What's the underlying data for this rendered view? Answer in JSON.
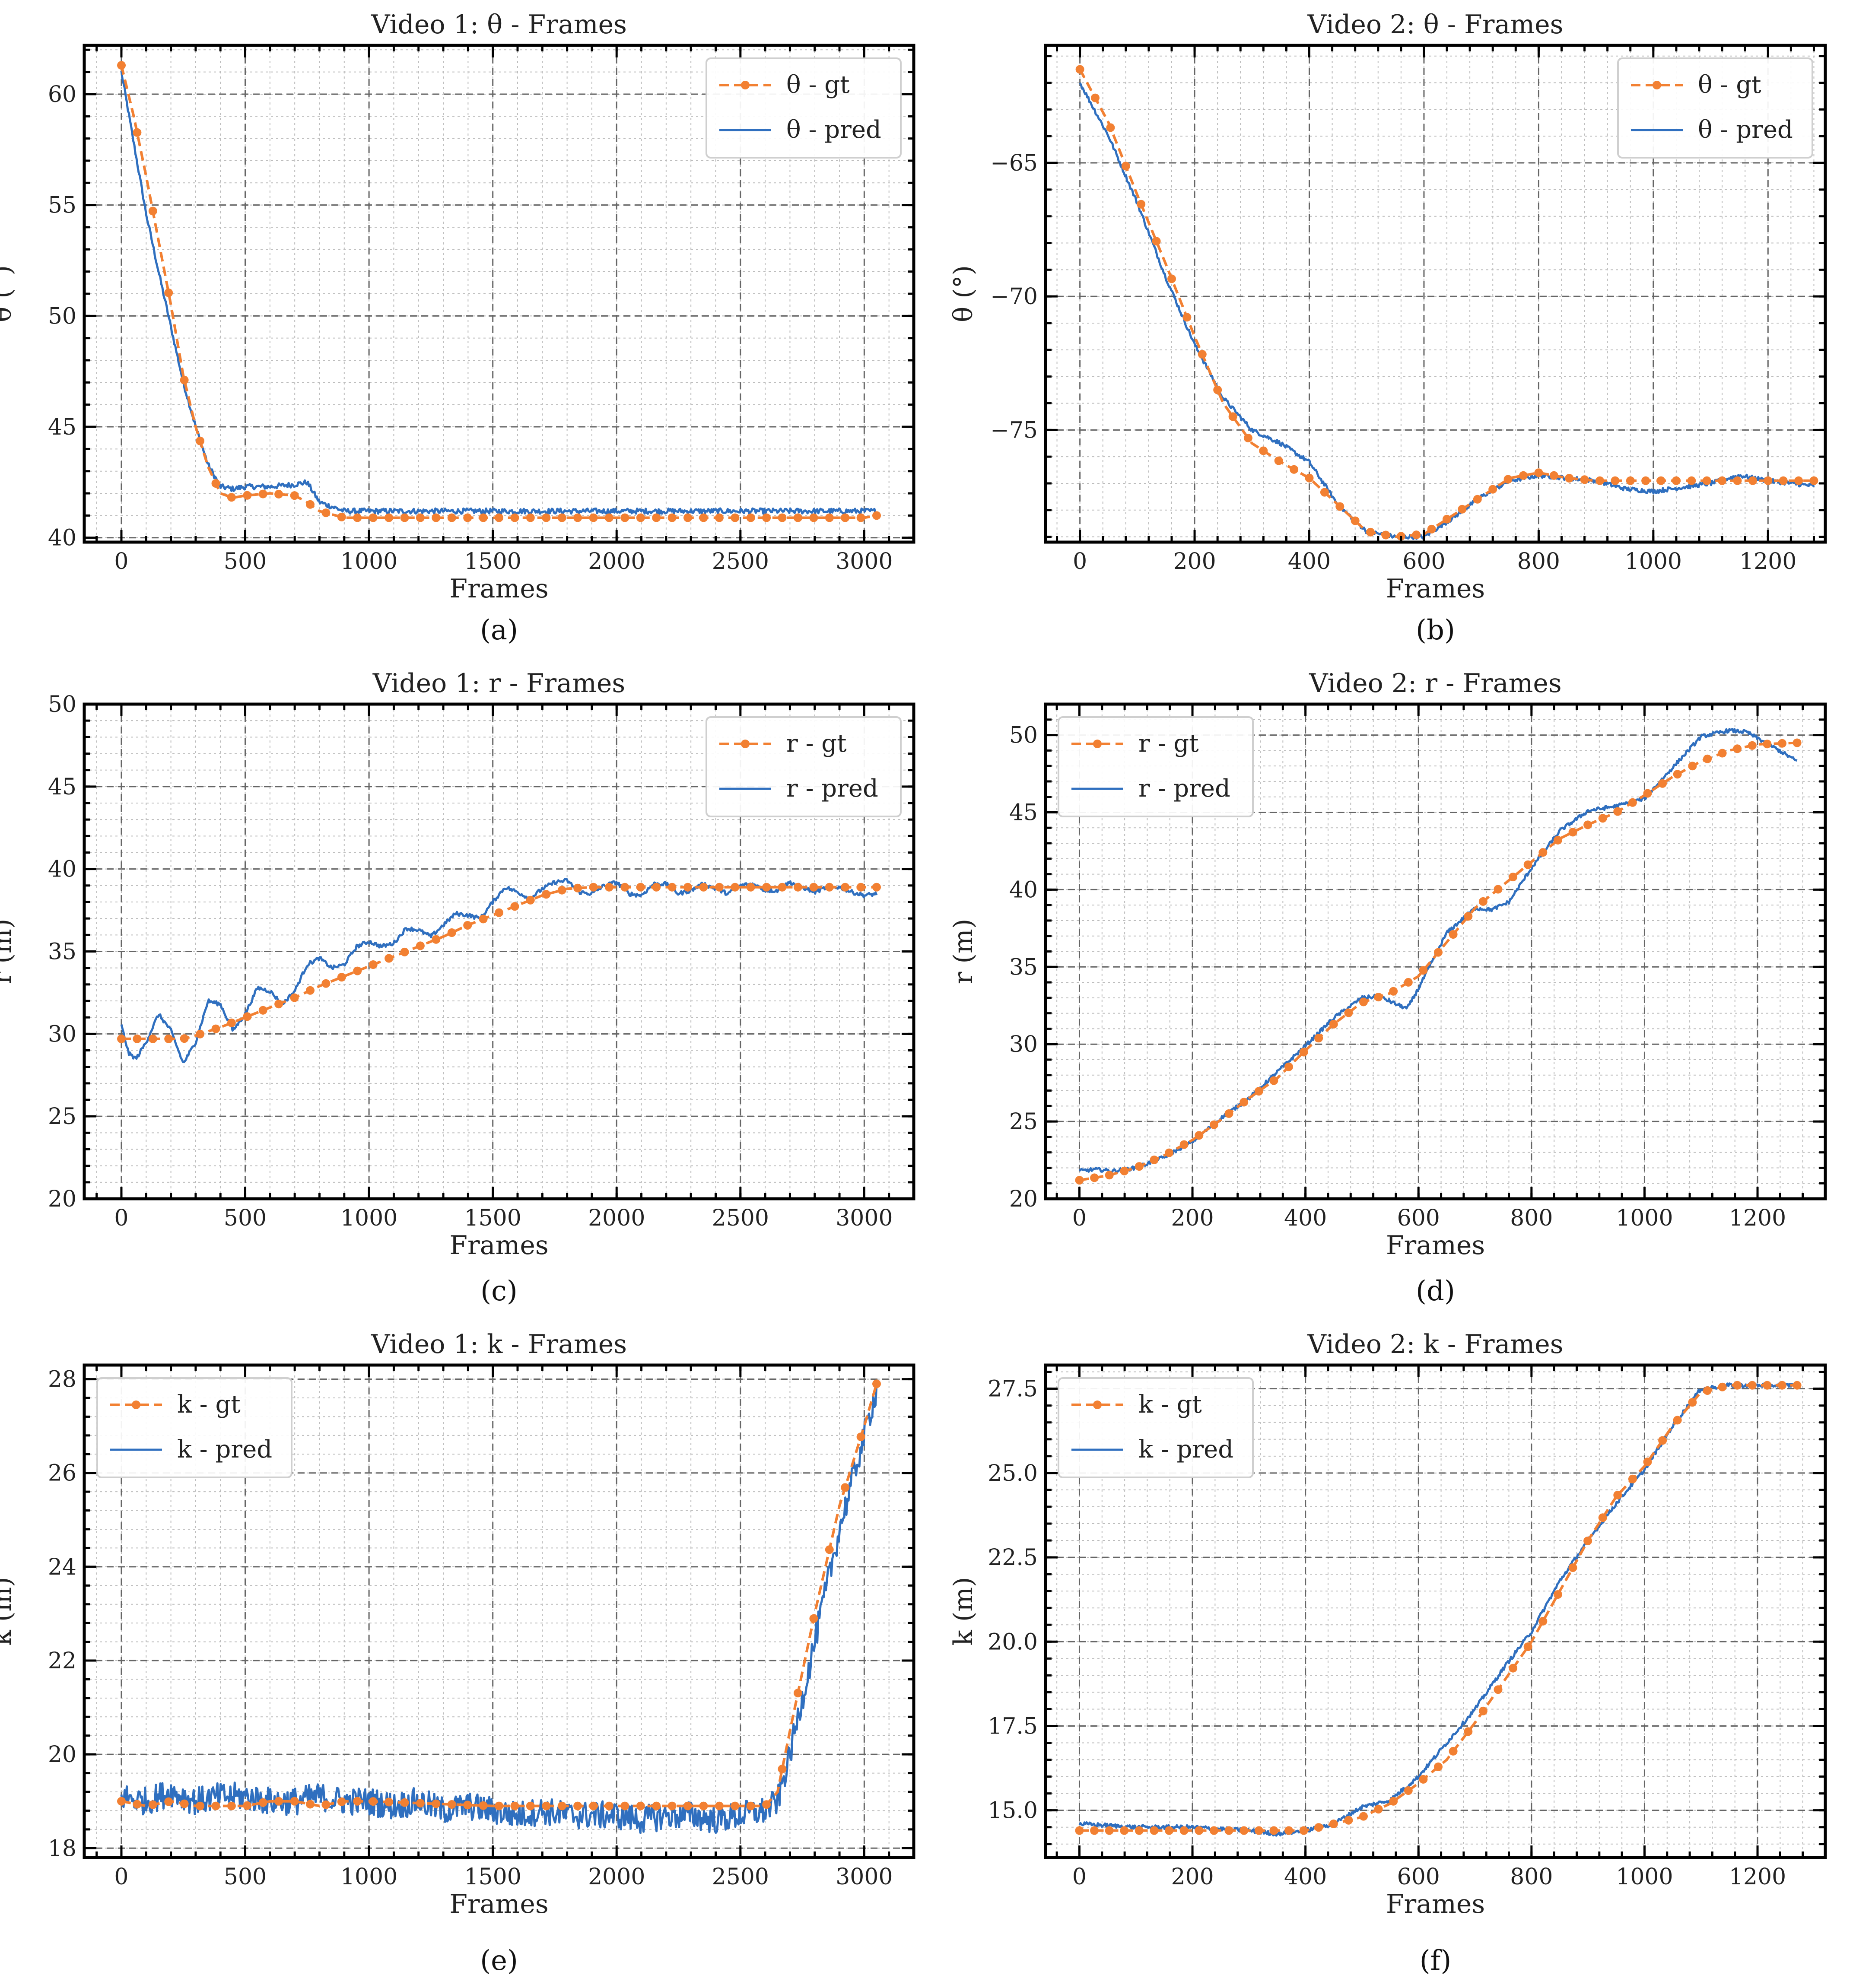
{
  "colors": {
    "gt": "#f28032",
    "pred": "#2f6fbf"
  },
  "chart_data": [
    {
      "id": "a",
      "type": "line",
      "caption": "(a)",
      "title": "Video 1: θ - Frames",
      "xlabel": "Frames",
      "ylabel": "θ (°)",
      "xlim": [
        -150,
        3200
      ],
      "ylim": [
        39.8,
        62.2
      ],
      "xticks": [
        0,
        500,
        1000,
        1500,
        2000,
        2500,
        3000
      ],
      "xtick_labels": [
        "0",
        "500",
        "1000",
        "1500",
        "2000",
        "2500",
        "3000"
      ],
      "yticks": [
        40,
        45,
        50,
        55,
        60
      ],
      "ytick_labels": [
        "40",
        "45",
        "50",
        "55",
        "60"
      ],
      "legend": {
        "position": "top-right",
        "gt_label": "θ - gt",
        "pred_label": "θ - pred"
      },
      "gt": {
        "x": [
          0,
          50,
          100,
          150,
          200,
          250,
          300,
          350,
          400,
          450,
          500,
          600,
          700,
          750,
          800,
          900,
          1000,
          1500,
          2000,
          2500,
          3000,
          3050
        ],
        "y": [
          61.3,
          59.0,
          56.3,
          53.4,
          50.5,
          47.3,
          45.0,
          43.2,
          42.0,
          41.8,
          41.9,
          42.0,
          41.9,
          41.6,
          41.2,
          40.9,
          40.9,
          40.9,
          40.9,
          40.9,
          40.9,
          41.0
        ]
      },
      "pred": {
        "x": [
          0,
          50,
          100,
          150,
          200,
          250,
          300,
          350,
          400,
          450,
          500,
          600,
          700,
          750,
          800,
          900,
          1000,
          1500,
          2000,
          2500,
          3000,
          3050
        ],
        "y": [
          61.0,
          57.8,
          54.6,
          52.0,
          49.5,
          47.0,
          45.0,
          43.3,
          42.3,
          42.2,
          42.3,
          42.3,
          42.4,
          42.5,
          41.6,
          41.2,
          41.2,
          41.2,
          41.2,
          41.2,
          41.2,
          41.2
        ]
      },
      "pred_noise": 0.12
    },
    {
      "id": "b",
      "type": "line",
      "caption": "(b)",
      "title": "Video 2: θ - Frames",
      "xlabel": "Frames",
      "ylabel": "θ (°)",
      "xlim": [
        -60,
        1300
      ],
      "ylim": [
        -79.2,
        -60.6
      ],
      "xticks": [
        0,
        200,
        400,
        600,
        800,
        1000,
        1200
      ],
      "xtick_labels": [
        "0",
        "200",
        "400",
        "600",
        "800",
        "1000",
        "1200"
      ],
      "yticks": [
        -75,
        -70,
        -65
      ],
      "ytick_labels": [
        "−75",
        "−70",
        "−65"
      ],
      "legend": {
        "position": "top-right",
        "gt_label": "θ - gt",
        "pred_label": "θ - pred"
      },
      "gt": {
        "x": [
          0,
          50,
          100,
          150,
          200,
          250,
          300,
          350,
          400,
          450,
          500,
          550,
          600,
          650,
          700,
          750,
          800,
          850,
          900,
          1000,
          1100,
          1200,
          1280
        ],
        "y": [
          -61.5,
          -63.5,
          -66.2,
          -68.8,
          -71.5,
          -74.0,
          -75.5,
          -76.2,
          -76.8,
          -77.8,
          -78.8,
          -79.0,
          -78.9,
          -78.2,
          -77.5,
          -76.8,
          -76.6,
          -76.8,
          -76.9,
          -76.9,
          -76.9,
          -76.9,
          -76.9
        ]
      },
      "pred": {
        "x": [
          0,
          50,
          100,
          150,
          200,
          250,
          300,
          350,
          400,
          450,
          500,
          550,
          600,
          650,
          700,
          750,
          800,
          850,
          900,
          950,
          1000,
          1100,
          1150,
          1200,
          1280
        ],
        "y": [
          -62.0,
          -64.0,
          -66.5,
          -69.3,
          -71.8,
          -73.8,
          -75.0,
          -75.5,
          -76.2,
          -77.8,
          -78.8,
          -79.0,
          -79.0,
          -78.3,
          -77.5,
          -76.9,
          -76.7,
          -76.8,
          -76.9,
          -77.2,
          -77.3,
          -77.0,
          -76.7,
          -76.9,
          -77.1
        ]
      },
      "pred_noise": 0.08
    },
    {
      "id": "c",
      "type": "line",
      "caption": "(c)",
      "title": "Video 1: r - Frames",
      "xlabel": "Frames",
      "ylabel": "r (m)",
      "xlim": [
        -150,
        3200
      ],
      "ylim": [
        20,
        50
      ],
      "xticks": [
        0,
        500,
        1000,
        1500,
        2000,
        2500,
        3000
      ],
      "xtick_labels": [
        "0",
        "500",
        "1000",
        "1500",
        "2000",
        "2500",
        "3000"
      ],
      "yticks": [
        20,
        25,
        30,
        35,
        40,
        45,
        50
      ],
      "ytick_labels": [
        "20",
        "25",
        "30",
        "35",
        "40",
        "45",
        "50"
      ],
      "legend": {
        "position": "top-right",
        "gt_label": "r - gt",
        "pred_label": "r - pred"
      },
      "gt": {
        "x": [
          0,
          100,
          200,
          250,
          300,
          400,
          500,
          600,
          700,
          800,
          900,
          1000,
          1100,
          1200,
          1300,
          1400,
          1500,
          1600,
          1700,
          1800,
          1900,
          2000,
          2500,
          3050
        ],
        "y": [
          29.7,
          29.7,
          29.7,
          29.7,
          29.9,
          30.4,
          31.0,
          31.6,
          32.2,
          32.9,
          33.5,
          34.1,
          34.7,
          35.3,
          35.9,
          36.6,
          37.2,
          37.8,
          38.4,
          38.8,
          38.9,
          38.9,
          38.9,
          38.9
        ]
      },
      "pred": {
        "x": [
          0,
          30,
          60,
          100,
          150,
          200,
          250,
          300,
          350,
          400,
          450,
          500,
          550,
          600,
          650,
          700,
          750,
          800,
          850,
          900,
          950,
          1000,
          1050,
          1100,
          1150,
          1200,
          1250,
          1300,
          1350,
          1400,
          1450,
          1500,
          1550,
          1600,
          1650,
          1700,
          1750,
          1800,
          1850,
          1900,
          1950,
          2000,
          2050,
          2100,
          2150,
          2200,
          2250,
          2300,
          2350,
          2400,
          2450,
          2500,
          2550,
          2600,
          2650,
          2700,
          2750,
          2800,
          2850,
          2900,
          2950,
          3000,
          3050
        ],
        "y": [
          30.5,
          28.8,
          28.5,
          29.5,
          31.2,
          30.2,
          28.2,
          29.5,
          32.0,
          31.8,
          30.2,
          31.2,
          32.8,
          32.6,
          31.8,
          32.6,
          34.2,
          34.6,
          34.0,
          34.2,
          35.3,
          35.6,
          35.3,
          35.5,
          36.4,
          36.3,
          35.9,
          36.6,
          37.3,
          37.2,
          37.0,
          38.0,
          38.9,
          38.6,
          38.2,
          38.8,
          39.2,
          39.3,
          38.6,
          38.5,
          39.0,
          39.2,
          38.5,
          38.4,
          39.1,
          39.1,
          38.5,
          38.7,
          39.1,
          38.8,
          38.5,
          39.0,
          39.1,
          38.7,
          38.7,
          39.2,
          38.9,
          38.6,
          38.9,
          38.9,
          38.6,
          38.4,
          38.5
        ]
      },
      "pred_noise": 0.12
    },
    {
      "id": "d",
      "type": "line",
      "caption": "(d)",
      "title": "Video 2: r - Frames",
      "xlabel": "Frames",
      "ylabel": "r (m)",
      "xlim": [
        -60,
        1320
      ],
      "ylim": [
        20,
        52
      ],
      "xticks": [
        0,
        200,
        400,
        600,
        800,
        1000,
        1200
      ],
      "xtick_labels": [
        "0",
        "200",
        "400",
        "600",
        "800",
        "1000",
        "1200"
      ],
      "yticks": [
        20,
        25,
        30,
        35,
        40,
        45,
        50
      ],
      "ytick_labels": [
        "20",
        "25",
        "30",
        "35",
        "40",
        "45",
        "50"
      ],
      "legend": {
        "position": "top-left",
        "gt_label": "r - gt",
        "pred_label": "r - pred"
      },
      "gt": {
        "x": [
          0,
          50,
          100,
          150,
          200,
          250,
          300,
          350,
          400,
          450,
          500,
          550,
          600,
          650,
          700,
          750,
          800,
          850,
          900,
          950,
          1000,
          1050,
          1100,
          1150,
          1200,
          1270
        ],
        "y": [
          21.2,
          21.5,
          22.0,
          22.8,
          23.8,
          25.1,
          26.5,
          27.8,
          29.6,
          31.3,
          32.7,
          33.3,
          34.4,
          36.6,
          38.8,
          40.3,
          41.8,
          43.3,
          44.2,
          45.0,
          46.1,
          47.3,
          48.3,
          49.0,
          49.4,
          49.5
        ]
      },
      "pred": {
        "x": [
          0,
          30,
          60,
          100,
          150,
          200,
          250,
          300,
          350,
          400,
          450,
          500,
          530,
          560,
          580,
          600,
          650,
          700,
          730,
          760,
          800,
          850,
          900,
          950,
          1000,
          1050,
          1100,
          1150,
          1180,
          1220,
          1270
        ],
        "y": [
          21.8,
          21.9,
          21.8,
          22.0,
          22.7,
          23.7,
          25.2,
          26.5,
          28.2,
          29.9,
          31.7,
          33.0,
          33.1,
          32.6,
          32.3,
          33.6,
          37.2,
          38.8,
          38.7,
          39.2,
          41.4,
          43.8,
          45.1,
          45.4,
          45.9,
          47.9,
          49.9,
          50.3,
          50.2,
          49.4,
          48.3
        ]
      },
      "pred_noise": 0.12
    },
    {
      "id": "e",
      "type": "line",
      "caption": "(e)",
      "title": "Video 1: k - Frames",
      "xlabel": "Frames",
      "ylabel": "k (m)",
      "xlim": [
        -150,
        3200
      ],
      "ylim": [
        17.8,
        28.3
      ],
      "xticks": [
        0,
        500,
        1000,
        1500,
        2000,
        2500,
        3000
      ],
      "xtick_labels": [
        "0",
        "500",
        "1000",
        "1500",
        "2000",
        "2500",
        "3000"
      ],
      "yticks": [
        18,
        20,
        22,
        24,
        26,
        28
      ],
      "ytick_labels": [
        "18",
        "20",
        "22",
        "24",
        "26",
        "28"
      ],
      "legend": {
        "position": "top-left",
        "gt_label": "k - gt",
        "pred_label": "k - pred"
      },
      "gt": {
        "x": [
          0,
          100,
          200,
          300,
          400,
          500,
          600,
          700,
          800,
          900,
          1000,
          1500,
          2000,
          2500,
          2600,
          2650,
          2700,
          2800,
          2900,
          3000,
          3050
        ],
        "y": [
          19.0,
          18.9,
          19.0,
          18.9,
          18.9,
          18.9,
          19.0,
          19.0,
          18.9,
          19.0,
          19.0,
          18.9,
          18.9,
          18.9,
          18.9,
          19.2,
          20.5,
          23.0,
          25.3,
          27.0,
          27.9
        ]
      },
      "pred": {
        "x": [
          0,
          100,
          200,
          300,
          400,
          500,
          600,
          700,
          800,
          900,
          1000,
          1100,
          1200,
          1300,
          1400,
          1500,
          1600,
          1700,
          1800,
          1900,
          2000,
          2100,
          2200,
          2300,
          2400,
          2500,
          2600,
          2650,
          2700,
          2800,
          2900,
          3000,
          3050
        ],
        "y": [
          19.1,
          19.0,
          19.2,
          19.0,
          19.1,
          19.1,
          19.0,
          19.0,
          19.1,
          19.0,
          19.0,
          18.9,
          19.0,
          18.8,
          18.9,
          18.8,
          18.7,
          18.8,
          18.7,
          18.7,
          18.7,
          18.6,
          18.7,
          18.7,
          18.6,
          18.7,
          18.8,
          19.0,
          20.0,
          22.4,
          24.8,
          26.8,
          27.8
        ]
      },
      "pred_noise": 0.3
    },
    {
      "id": "f",
      "type": "line",
      "caption": "(f)",
      "title": "Video 2: k - Frames",
      "xlabel": "Frames",
      "ylabel": "k (m)",
      "xlim": [
        -60,
        1320
      ],
      "ylim": [
        13.6,
        28.2
      ],
      "xticks": [
        0,
        200,
        400,
        600,
        800,
        1000,
        1200
      ],
      "xtick_labels": [
        "0",
        "200",
        "400",
        "600",
        "800",
        "1000",
        "1200"
      ],
      "yticks": [
        15.0,
        17.5,
        20.0,
        22.5,
        25.0,
        27.5
      ],
      "ytick_labels": [
        "15.0",
        "17.5",
        "20.0",
        "22.5",
        "25.0",
        "27.5"
      ],
      "legend": {
        "position": "top-left",
        "gt_label": "k - gt",
        "pred_label": "k - pred"
      },
      "gt": {
        "x": [
          0,
          100,
          200,
          300,
          400,
          450,
          500,
          550,
          600,
          650,
          700,
          750,
          800,
          850,
          900,
          950,
          1000,
          1050,
          1100,
          1150,
          1200,
          1270
        ],
        "y": [
          14.4,
          14.4,
          14.4,
          14.4,
          14.4,
          14.6,
          14.8,
          15.2,
          15.8,
          16.5,
          17.6,
          18.8,
          20.0,
          21.5,
          23.0,
          24.3,
          25.2,
          26.4,
          27.4,
          27.6,
          27.6,
          27.6
        ]
      },
      "pred": {
        "x": [
          0,
          100,
          200,
          300,
          350,
          400,
          450,
          500,
          550,
          600,
          650,
          700,
          750,
          800,
          850,
          900,
          950,
          1000,
          1050,
          1100,
          1150,
          1200,
          1270
        ],
        "y": [
          14.6,
          14.5,
          14.5,
          14.4,
          14.3,
          14.4,
          14.6,
          15.1,
          15.3,
          16.0,
          17.0,
          18.0,
          19.2,
          20.3,
          21.8,
          23.0,
          24.1,
          25.1,
          26.4,
          27.5,
          27.6,
          27.6,
          27.6
        ]
      },
      "pred_noise": 0.06
    }
  ]
}
